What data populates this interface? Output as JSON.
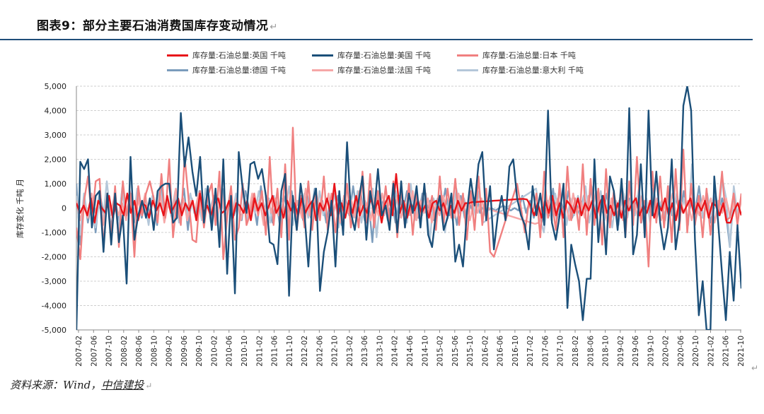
{
  "header": {
    "title": "图表9：部分主要石油消费国库存变动情况",
    "return_mark": "↵"
  },
  "footer": {
    "source_prefix": "资料来源：Wind，",
    "source_brand": "中信建投",
    "return_mark": "↵"
  },
  "chart_data": {
    "type": "line",
    "title": "",
    "xlabel": "",
    "ylabel": "库存变化 千吨 月",
    "ylim": [
      -5000,
      5000
    ],
    "yticks": [
      -5000,
      -4000,
      -3000,
      -2000,
      -1000,
      0,
      1000,
      2000,
      3000,
      4000,
      5000
    ],
    "ytick_labels": [
      "-5,000",
      "-4,000",
      "-3,000",
      "-2,000",
      "-1,000",
      "0",
      "1,000",
      "2,000",
      "3,000",
      "4,000",
      "5,000"
    ],
    "xtick_labels": [
      "2007-02",
      "2007-06",
      "2007-10",
      "2008-02",
      "2008-06",
      "2008-10",
      "2009-02",
      "2009-06",
      "2009-10",
      "2010-02",
      "2010-06",
      "2010-10",
      "2011-02",
      "2011-06",
      "2011-10",
      "2012-02",
      "2012-06",
      "2012-10",
      "2013-02",
      "2013-06",
      "2013-10",
      "2014-02",
      "2014-06",
      "2014-10",
      "2015-02",
      "2015-06",
      "2015-10",
      "2016-02",
      "2016-06",
      "2016-10",
      "2017-02",
      "2017-06",
      "2017-10",
      "2018-02",
      "2018-06",
      "2018-10",
      "2019-02",
      "2019-06",
      "2019-10",
      "2020-02",
      "2020-06",
      "2020-10",
      "2021-02",
      "2021-06",
      "2021-10"
    ],
    "grid": true,
    "legend_position": "top",
    "series": [
      {
        "name": "库存量:石油总量:英国  千吨",
        "color": "#e8141a",
        "width": 2.4,
        "values": [
          200,
          -200,
          100,
          -300,
          400,
          -600,
          300,
          0,
          -200,
          500,
          -400,
          200,
          100,
          -300,
          600,
          -200,
          300,
          -500,
          200,
          100,
          -400,
          300,
          -100,
          200,
          -300,
          500,
          -200,
          100,
          400,
          -300,
          200,
          -100,
          300,
          -500,
          600,
          -200,
          100,
          -300,
          200,
          400,
          -200,
          -100,
          300,
          -400,
          200,
          100,
          -200,
          300,
          -500,
          400,
          -100,
          200,
          -300,
          100,
          500,
          -200,
          100,
          -400,
          300,
          -100,
          200,
          -300,
          400,
          -200,
          100,
          300,
          -500,
          200,
          -100,
          400,
          -300,
          1000,
          -300,
          200,
          -400,
          300,
          -200,
          500,
          -300,
          100,
          -200,
          400,
          -100,
          300,
          -600,
          200,
          500,
          -300,
          1400,
          -200,
          300,
          -400,
          200,
          -100,
          300,
          -200,
          100,
          -400,
          200,
          300,
          -100,
          200,
          -300,
          100,
          -200,
          300,
          -100,
          200,
          200,
          250,
          250,
          260,
          270,
          280,
          290,
          300,
          310,
          320,
          330,
          340,
          350,
          360,
          370,
          380,
          350,
          100,
          -300,
          200,
          -400,
          300,
          -200,
          500,
          -300,
          200,
          -400,
          300,
          100,
          -200,
          400,
          -300,
          200,
          -100,
          300,
          -400,
          200,
          500,
          -200,
          100,
          -300,
          200,
          -400,
          300,
          -100,
          200,
          400,
          -300,
          100,
          -200,
          300,
          -400,
          200,
          -100,
          400,
          -300,
          200,
          -500,
          300,
          -200,
          100,
          400,
          -300,
          200,
          -100,
          300,
          -400,
          200,
          100,
          -300,
          200,
          -600,
          -600,
          -100,
          200,
          -300
        ]
      },
      {
        "name": "库存量:石油总量:美国  千吨",
        "color": "#1b4f79",
        "width": 2.4,
        "values": [
          -5000,
          1900,
          1600,
          2000,
          -800,
          500,
          700,
          -1800,
          600,
          -1500,
          600,
          -1400,
          -300,
          -3100,
          2100,
          -1300,
          -300,
          300,
          -400,
          400,
          -900,
          700,
          900,
          1000,
          1000,
          -600,
          -400,
          3900,
          1700,
          2900,
          1500,
          500,
          2100,
          -600,
          900,
          -900,
          800,
          -1600,
          2000,
          -2700,
          500,
          -3500,
          2300,
          800,
          -200,
          1800,
          1900,
          1200,
          1600,
          500,
          -1400,
          -1500,
          -2300,
          700,
          1400,
          -3600,
          500,
          -900,
          1000,
          -200,
          -2400,
          200,
          800,
          -3400,
          -1800,
          -1000,
          300,
          -2400,
          700,
          -1100,
          2700,
          -200,
          -900,
          300,
          1300,
          -1300,
          700,
          -200,
          1600,
          -300,
          100,
          -900,
          1000,
          -1000,
          1100,
          -800,
          600,
          -200,
          900,
          -800,
          1000,
          -1100,
          -1600,
          -200,
          500,
          -900,
          -400,
          600,
          -2200,
          -1500,
          -2400,
          -200,
          1200,
          100,
          1800,
          2300,
          -500,
          900,
          -1700,
          -300,
          500,
          -500,
          1700,
          2000,
          400,
          -300,
          -700,
          -1700,
          900,
          -300,
          600,
          -700,
          4000,
          -600,
          -1300,
          -300,
          1000,
          -4100,
          -1500,
          -2300,
          -3000,
          -4600,
          -2900,
          -2900,
          2000,
          -1400,
          500,
          -1900,
          1300,
          700,
          -900,
          1200,
          -1200,
          4100,
          -1900,
          -1100,
          1800,
          -1200,
          4000,
          -300,
          1500,
          -600,
          -1700,
          -800,
          2000,
          -1700,
          -500,
          4200,
          5000,
          4000,
          -1300,
          -4400,
          -3000,
          -5000,
          -5000,
          1300,
          -600,
          -2700,
          -4600,
          -1800,
          -3800,
          -700,
          -3300
        ]
      },
      {
        "name": "库存量:石油总量:日本  千吨",
        "color": "#f08080",
        "width": 2.4,
        "values": [
          -800,
          -2100,
          300,
          1300,
          -500,
          1100,
          1200,
          -1600,
          600,
          -1200,
          900,
          -1600,
          1100,
          -300,
          600,
          -2000,
          900,
          -300,
          600,
          1100,
          400,
          -600,
          1400,
          -400,
          2000,
          -1200,
          300,
          -700,
          2100,
          400,
          -1300,
          -1400,
          700,
          -800,
          500,
          1000,
          -700,
          1500,
          -2100,
          -400,
          900,
          -1300,
          -800,
          1000,
          -700,
          -200,
          600,
          -300,
          700,
          -1100,
          2100,
          -700,
          800,
          -1200,
          1800,
          -1300,
          3300,
          -900,
          500,
          -800,
          1100,
          -900,
          700,
          -500,
          1300,
          -900,
          600,
          -1000,
          500,
          -700,
          1000,
          -800,
          300,
          -800,
          1500,
          -600,
          1400,
          -800,
          700,
          -500,
          900,
          -600,
          1100,
          -1200,
          800,
          -800,
          1000,
          -1100,
          600,
          -400,
          900,
          -300,
          500,
          -900,
          1300,
          -600,
          800,
          -400,
          1200,
          -700,
          600,
          -1300,
          700,
          -900,
          1300,
          -700,
          800,
          -1800,
          -2000,
          -1500,
          -1000,
          -500,
          0,
          500,
          1000,
          0,
          -1000,
          200,
          -200,
          600,
          -1200,
          1500,
          -400,
          300,
          -900,
          1000,
          -1200,
          1700,
          -500,
          400,
          -900,
          1800,
          -1100,
          1200,
          -700,
          800,
          -1500,
          1600,
          -800,
          700,
          -400,
          900,
          -1200,
          1100,
          -700,
          2100,
          -600,
          300,
          -2400,
          1500,
          -600,
          1300,
          -800,
          900,
          -1400,
          1600,
          -900,
          2400,
          -1000,
          1000,
          -700,
          500,
          -1200,
          800,
          -1100,
          300,
          -200,
          1500,
          -500,
          -400,
          600,
          -700,
          600
        ]
      },
      {
        "name": "库存量:石油总量:德国  千吨",
        "color": "#7b9cbc",
        "width": 2.4,
        "values": [
          1000,
          -1500,
          500,
          -600,
          300,
          -1000,
          700,
          -200,
          400,
          -800,
          300,
          -500,
          900,
          -300,
          200,
          -600,
          800,
          -400,
          300,
          -200,
          500,
          -700,
          1000,
          -300,
          200,
          -500,
          600,
          -100,
          800,
          -900,
          400,
          -300,
          700,
          -200,
          500,
          -600,
          300,
          -100,
          800,
          -400,
          600,
          -300,
          200,
          -500,
          700,
          -100,
          300,
          -700,
          900,
          -200,
          400,
          -600,
          300,
          -800,
          500,
          -200,
          700,
          -300,
          100,
          -500,
          600,
          -400,
          800,
          -200,
          300,
          -600,
          200,
          -100,
          500,
          -700,
          400,
          -300,
          900,
          -200,
          600,
          -500,
          300,
          -1400,
          800,
          -200,
          400,
          -500,
          300,
          -600,
          500,
          -100,
          700,
          -300,
          200,
          -400,
          600,
          -200,
          300,
          -500,
          400,
          -100,
          800,
          -300,
          200,
          -700,
          500,
          -400,
          300,
          -100,
          600,
          -200,
          100,
          -100,
          0,
          -100,
          0,
          100,
          0,
          -100,
          0,
          -100,
          500,
          -200,
          300,
          -400,
          200,
          -600,
          400,
          -300,
          800,
          -500,
          300,
          -200,
          700,
          -400,
          200,
          -300,
          500,
          -100,
          900,
          -300,
          400,
          -200,
          600,
          -500,
          300,
          -700,
          800,
          -200,
          400,
          -300,
          500,
          -600,
          300,
          -200,
          800,
          -400,
          200,
          -500,
          600,
          -300,
          400,
          -200,
          700,
          -500,
          300,
          -100,
          900,
          -400,
          200,
          -600,
          500,
          -300,
          400,
          -200,
          -1600,
          500,
          -200,
          300
        ]
      },
      {
        "name": "库存量:石油总量:法国  千吨",
        "color": "#f6a7a7",
        "width": 2.4,
        "values": [
          300,
          -500,
          200,
          -400,
          600,
          -200,
          300,
          -700,
          500,
          -100,
          400,
          -300,
          200,
          -500,
          700,
          -300,
          400,
          -200,
          600,
          -400,
          300,
          -100,
          500,
          -600,
          200,
          -300,
          800,
          -200,
          400,
          -500,
          300,
          -100,
          600,
          -400,
          200,
          -300,
          500,
          -200,
          700,
          -600,
          300,
          -100,
          400,
          -500,
          200,
          -300,
          600,
          -100,
          300,
          -700,
          500,
          -200,
          400,
          -300,
          100,
          -500,
          600,
          -200,
          300,
          -400,
          800,
          -300,
          200,
          -500,
          400,
          -100,
          600,
          -300,
          200,
          -600,
          500,
          -200,
          300,
          -400,
          700,
          -100,
          200,
          -500,
          400,
          -300,
          600,
          -200,
          300,
          -100,
          500,
          -400,
          200,
          -300,
          700,
          -500,
          300,
          -200,
          400,
          -600,
          100,
          -300,
          500,
          -200,
          300,
          -400,
          600,
          -100,
          200,
          -500,
          300,
          -200,
          400,
          -300,
          0,
          -100,
          -150,
          -200,
          -250,
          -300,
          -350,
          -400,
          -450,
          -500,
          -550,
          -600,
          -650,
          -600,
          300,
          -200,
          500,
          -100,
          400,
          -300,
          200,
          -500,
          600,
          -200,
          300,
          -400,
          500,
          -100,
          700,
          -300,
          200,
          -600,
          400,
          -200,
          300,
          -500,
          600,
          -100,
          200,
          -400,
          500,
          -300,
          300,
          -200,
          400,
          -500,
          200,
          -100,
          600,
          -300,
          400,
          -200,
          300,
          -500,
          200,
          -300,
          500,
          -100,
          400,
          -600,
          300,
          -200,
          400,
          -300,
          200,
          -400,
          300
        ]
      },
      {
        "name": "库存量:石油总量:意大利  千吨",
        "color": "#b4c7d9",
        "width": 2.4,
        "values": [
          500,
          -1100,
          600,
          -400,
          300,
          -800,
          200,
          -500,
          1100,
          -300,
          500,
          -900,
          700,
          -200,
          400,
          -600,
          800,
          -300,
          200,
          -700,
          500,
          -100,
          900,
          -400,
          300,
          -200,
          700,
          -600,
          400,
          -300,
          600,
          -200,
          300,
          -500,
          800,
          -100,
          400,
          -700,
          500,
          -300,
          200,
          -400,
          600,
          -100,
          800,
          -500,
          300,
          -200,
          700,
          -400,
          200,
          -600,
          500,
          -300,
          400,
          -100,
          900,
          -700,
          300,
          -200,
          600,
          -400,
          200,
          -500,
          700,
          -300,
          400,
          -100,
          600,
          -800,
          300,
          -200,
          500,
          -400,
          700,
          -600,
          300,
          -100,
          800,
          -1200,
          400,
          -300,
          500,
          -200,
          700,
          -400,
          300,
          -600,
          1000,
          -500,
          200,
          -300,
          600,
          -1400,
          400,
          -200,
          700,
          -1000,
          300,
          -500,
          800,
          -200,
          400,
          -100,
          600,
          -300,
          700,
          -600,
          -500,
          -400,
          -300,
          -200,
          -100,
          0,
          100,
          200,
          300,
          400,
          500,
          600,
          700,
          800,
          -400,
          -1000,
          300,
          -500,
          600,
          -200,
          800,
          -700,
          400,
          -300,
          500,
          -100,
          900,
          -600,
          300,
          -200,
          700,
          -500,
          400,
          -800,
          300,
          -100,
          600,
          -400,
          500,
          -300,
          800,
          -200,
          400,
          -600,
          700,
          -100,
          300,
          -500,
          900,
          -300,
          600,
          -200,
          400,
          -700,
          1800,
          -500,
          300,
          -400,
          600,
          -300,
          800,
          -200,
          1200,
          400,
          -1600,
          900,
          -300,
          500
        ]
      }
    ]
  }
}
